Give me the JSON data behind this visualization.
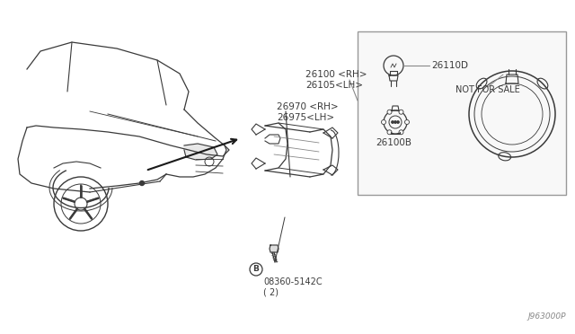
{
  "bg_color": "#ffffff",
  "line_color": "#3a3a3a",
  "text_color": "#3a3a3a",
  "gray_color": "#888888",
  "part_labels": {
    "bolt": "08360-5142C\n( 2)",
    "bolt_b": "B",
    "lamp_assy_rh": "26970 <RH>\n26975<LH>",
    "lamp_sub_rh": "26100 <RH>\n26105<LH>",
    "bulb": "26110D",
    "socket": "26100B",
    "not_for_sale": "NOT FOR SALE"
  },
  "diagram_code": "J963000P",
  "fig_width": 6.4,
  "fig_height": 3.72,
  "dpi": 100
}
